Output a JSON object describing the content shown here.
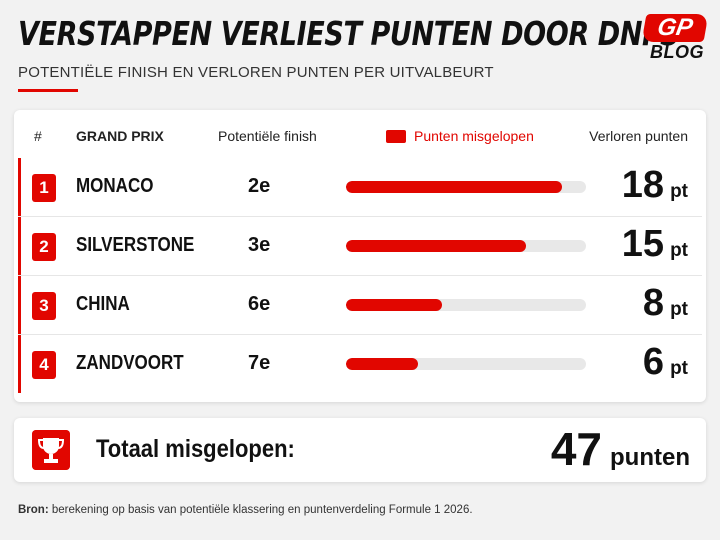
{
  "header": {
    "title": "VERSTAPPEN VERLIEST PUNTEN DOOR DNFS",
    "subtitle": "POTENTIËLE FINISH EN VERLOREN PUNTEN PER UITVALBEURT",
    "logo_top": "GP",
    "logo_bottom": "BLOG"
  },
  "table": {
    "col_num": "#",
    "col_gp": "GRAND PRIX",
    "col_potential": "Potentiële finish",
    "legend_label": "Punten misgelopen",
    "col_lost": "Verloren punten"
  },
  "chart_data": {
    "type": "bar",
    "orientation": "horizontal",
    "categories": [
      "MONACO",
      "SILVERSTONE",
      "CHINA",
      "ZANDVOORT"
    ],
    "ranks": [
      "1",
      "2",
      "3",
      "4"
    ],
    "potential_finish": [
      "2e",
      "3e",
      "6e",
      "7e"
    ],
    "series": [
      {
        "name": "Punten misgelopen",
        "values": [
          18,
          15,
          8,
          6
        ]
      }
    ],
    "unit": "pt",
    "xlim": [
      0,
      20
    ],
    "colors": {
      "bar": "#e10600",
      "track": "#e8e8e8"
    }
  },
  "total": {
    "label": "Totaal misgelopen:",
    "value": "47",
    "unit": "punten",
    "icon": "trophy-icon"
  },
  "source": {
    "label": "Bron:",
    "text": "berekening op basis van potentiële klassering en puntenverdeling Formule 1 2026."
  }
}
